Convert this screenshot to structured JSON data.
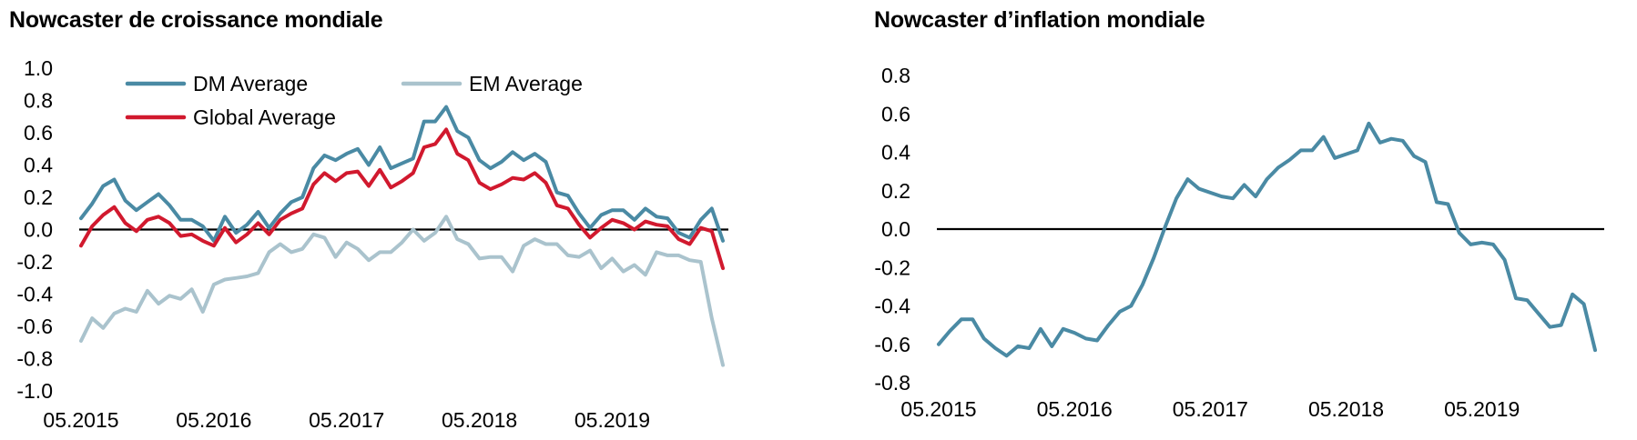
{
  "colors": {
    "dm": "#4a8aa4",
    "em": "#aac3cd",
    "global": "#d1192e",
    "zero_line": "#000000"
  },
  "chart_data": [
    {
      "type": "line",
      "title": "Nowcaster de croissance mondiale",
      "xlabel": "",
      "ylabel": "",
      "ylim": [
        -1.0,
        1.0
      ],
      "yticks": [
        "1.0",
        "0.8",
        "0.6",
        "0.4",
        "0.2",
        "0.0",
        "-0.2",
        "-0.4",
        "-0.6",
        "-0.8",
        "-1.0"
      ],
      "x_tick_labels": [
        "05.2015",
        "05.2016",
        "05.2017",
        "05.2018",
        "05.2019"
      ],
      "x_start": "05.2015",
      "legend": "top-left",
      "grid": false,
      "series": [
        {
          "name": "DM Average",
          "color_key": "dm",
          "values": [
            0.07,
            0.16,
            0.27,
            0.31,
            0.18,
            0.12,
            0.17,
            0.22,
            0.15,
            0.06,
            0.06,
            0.02,
            -0.07,
            0.08,
            -0.02,
            0.03,
            0.11,
            0.01,
            0.1,
            0.17,
            0.2,
            0.38,
            0.46,
            0.43,
            0.47,
            0.5,
            0.4,
            0.51,
            0.38,
            0.41,
            0.44,
            0.67,
            0.67,
            0.76,
            0.61,
            0.57,
            0.43,
            0.38,
            0.42,
            0.48,
            0.43,
            0.47,
            0.42,
            0.23,
            0.21,
            0.1,
            0.01,
            0.09,
            0.12,
            0.12,
            0.06,
            0.13,
            0.08,
            0.07,
            -0.02,
            -0.05,
            0.06,
            0.13,
            -0.07
          ]
        },
        {
          "name": "EM Average",
          "color_key": "em",
          "values": [
            -0.69,
            -0.55,
            -0.61,
            -0.52,
            -0.49,
            -0.51,
            -0.38,
            -0.46,
            -0.41,
            -0.43,
            -0.37,
            -0.51,
            -0.34,
            -0.31,
            -0.3,
            -0.29,
            -0.27,
            -0.14,
            -0.09,
            -0.14,
            -0.12,
            -0.03,
            -0.05,
            -0.17,
            -0.08,
            -0.12,
            -0.19,
            -0.14,
            -0.14,
            -0.08,
            0.0,
            -0.07,
            -0.02,
            0.08,
            -0.06,
            -0.09,
            -0.18,
            -0.17,
            -0.17,
            -0.26,
            -0.1,
            -0.06,
            -0.09,
            -0.09,
            -0.16,
            -0.17,
            -0.13,
            -0.24,
            -0.18,
            -0.26,
            -0.22,
            -0.28,
            -0.14,
            -0.16,
            -0.16,
            -0.19,
            -0.2,
            -0.55,
            -0.84
          ]
        },
        {
          "name": "Global Average",
          "color_key": "global",
          "values": [
            -0.1,
            0.02,
            0.09,
            0.14,
            0.04,
            -0.01,
            0.06,
            0.08,
            0.04,
            -0.04,
            -0.03,
            -0.07,
            -0.1,
            0.01,
            -0.08,
            -0.03,
            0.04,
            -0.03,
            0.06,
            0.1,
            0.13,
            0.28,
            0.35,
            0.3,
            0.35,
            0.36,
            0.27,
            0.37,
            0.26,
            0.3,
            0.35,
            0.51,
            0.53,
            0.62,
            0.47,
            0.43,
            0.29,
            0.25,
            0.28,
            0.32,
            0.31,
            0.35,
            0.29,
            0.15,
            0.13,
            0.03,
            -0.05,
            0.01,
            0.06,
            0.04,
            0.0,
            0.05,
            0.03,
            0.02,
            -0.06,
            -0.09,
            0.01,
            -0.01,
            -0.24
          ]
        }
      ]
    },
    {
      "type": "line",
      "title": "Nowcaster d’inflation mondiale",
      "xlabel": "",
      "ylabel": "",
      "ylim": [
        -0.8,
        0.8
      ],
      "yticks": [
        "0.8",
        "0.6",
        "0.4",
        "0.2",
        "0.0",
        "-0.2",
        "-0.4",
        "-0.6",
        "-0.8"
      ],
      "x_tick_labels": [
        "05.2015",
        "05.2016",
        "05.2017",
        "05.2018",
        "05.2019"
      ],
      "x_start": "05.2015",
      "legend": "none",
      "grid": false,
      "series": [
        {
          "color_key": "dm",
          "values": [
            -0.6,
            -0.53,
            -0.47,
            -0.47,
            -0.57,
            -0.62,
            -0.66,
            -0.61,
            -0.62,
            -0.52,
            -0.61,
            -0.52,
            -0.54,
            -0.57,
            -0.58,
            -0.5,
            -0.43,
            -0.4,
            -0.29,
            -0.15,
            0.01,
            0.16,
            0.26,
            0.21,
            0.19,
            0.17,
            0.16,
            0.23,
            0.17,
            0.26,
            0.32,
            0.36,
            0.41,
            0.41,
            0.48,
            0.37,
            0.39,
            0.41,
            0.55,
            0.45,
            0.47,
            0.46,
            0.38,
            0.35,
            0.14,
            0.13,
            -0.02,
            -0.08,
            -0.07,
            -0.08,
            -0.16,
            -0.36,
            -0.37,
            -0.44,
            -0.51,
            -0.5,
            -0.34,
            -0.39,
            -0.63
          ]
        }
      ]
    }
  ]
}
